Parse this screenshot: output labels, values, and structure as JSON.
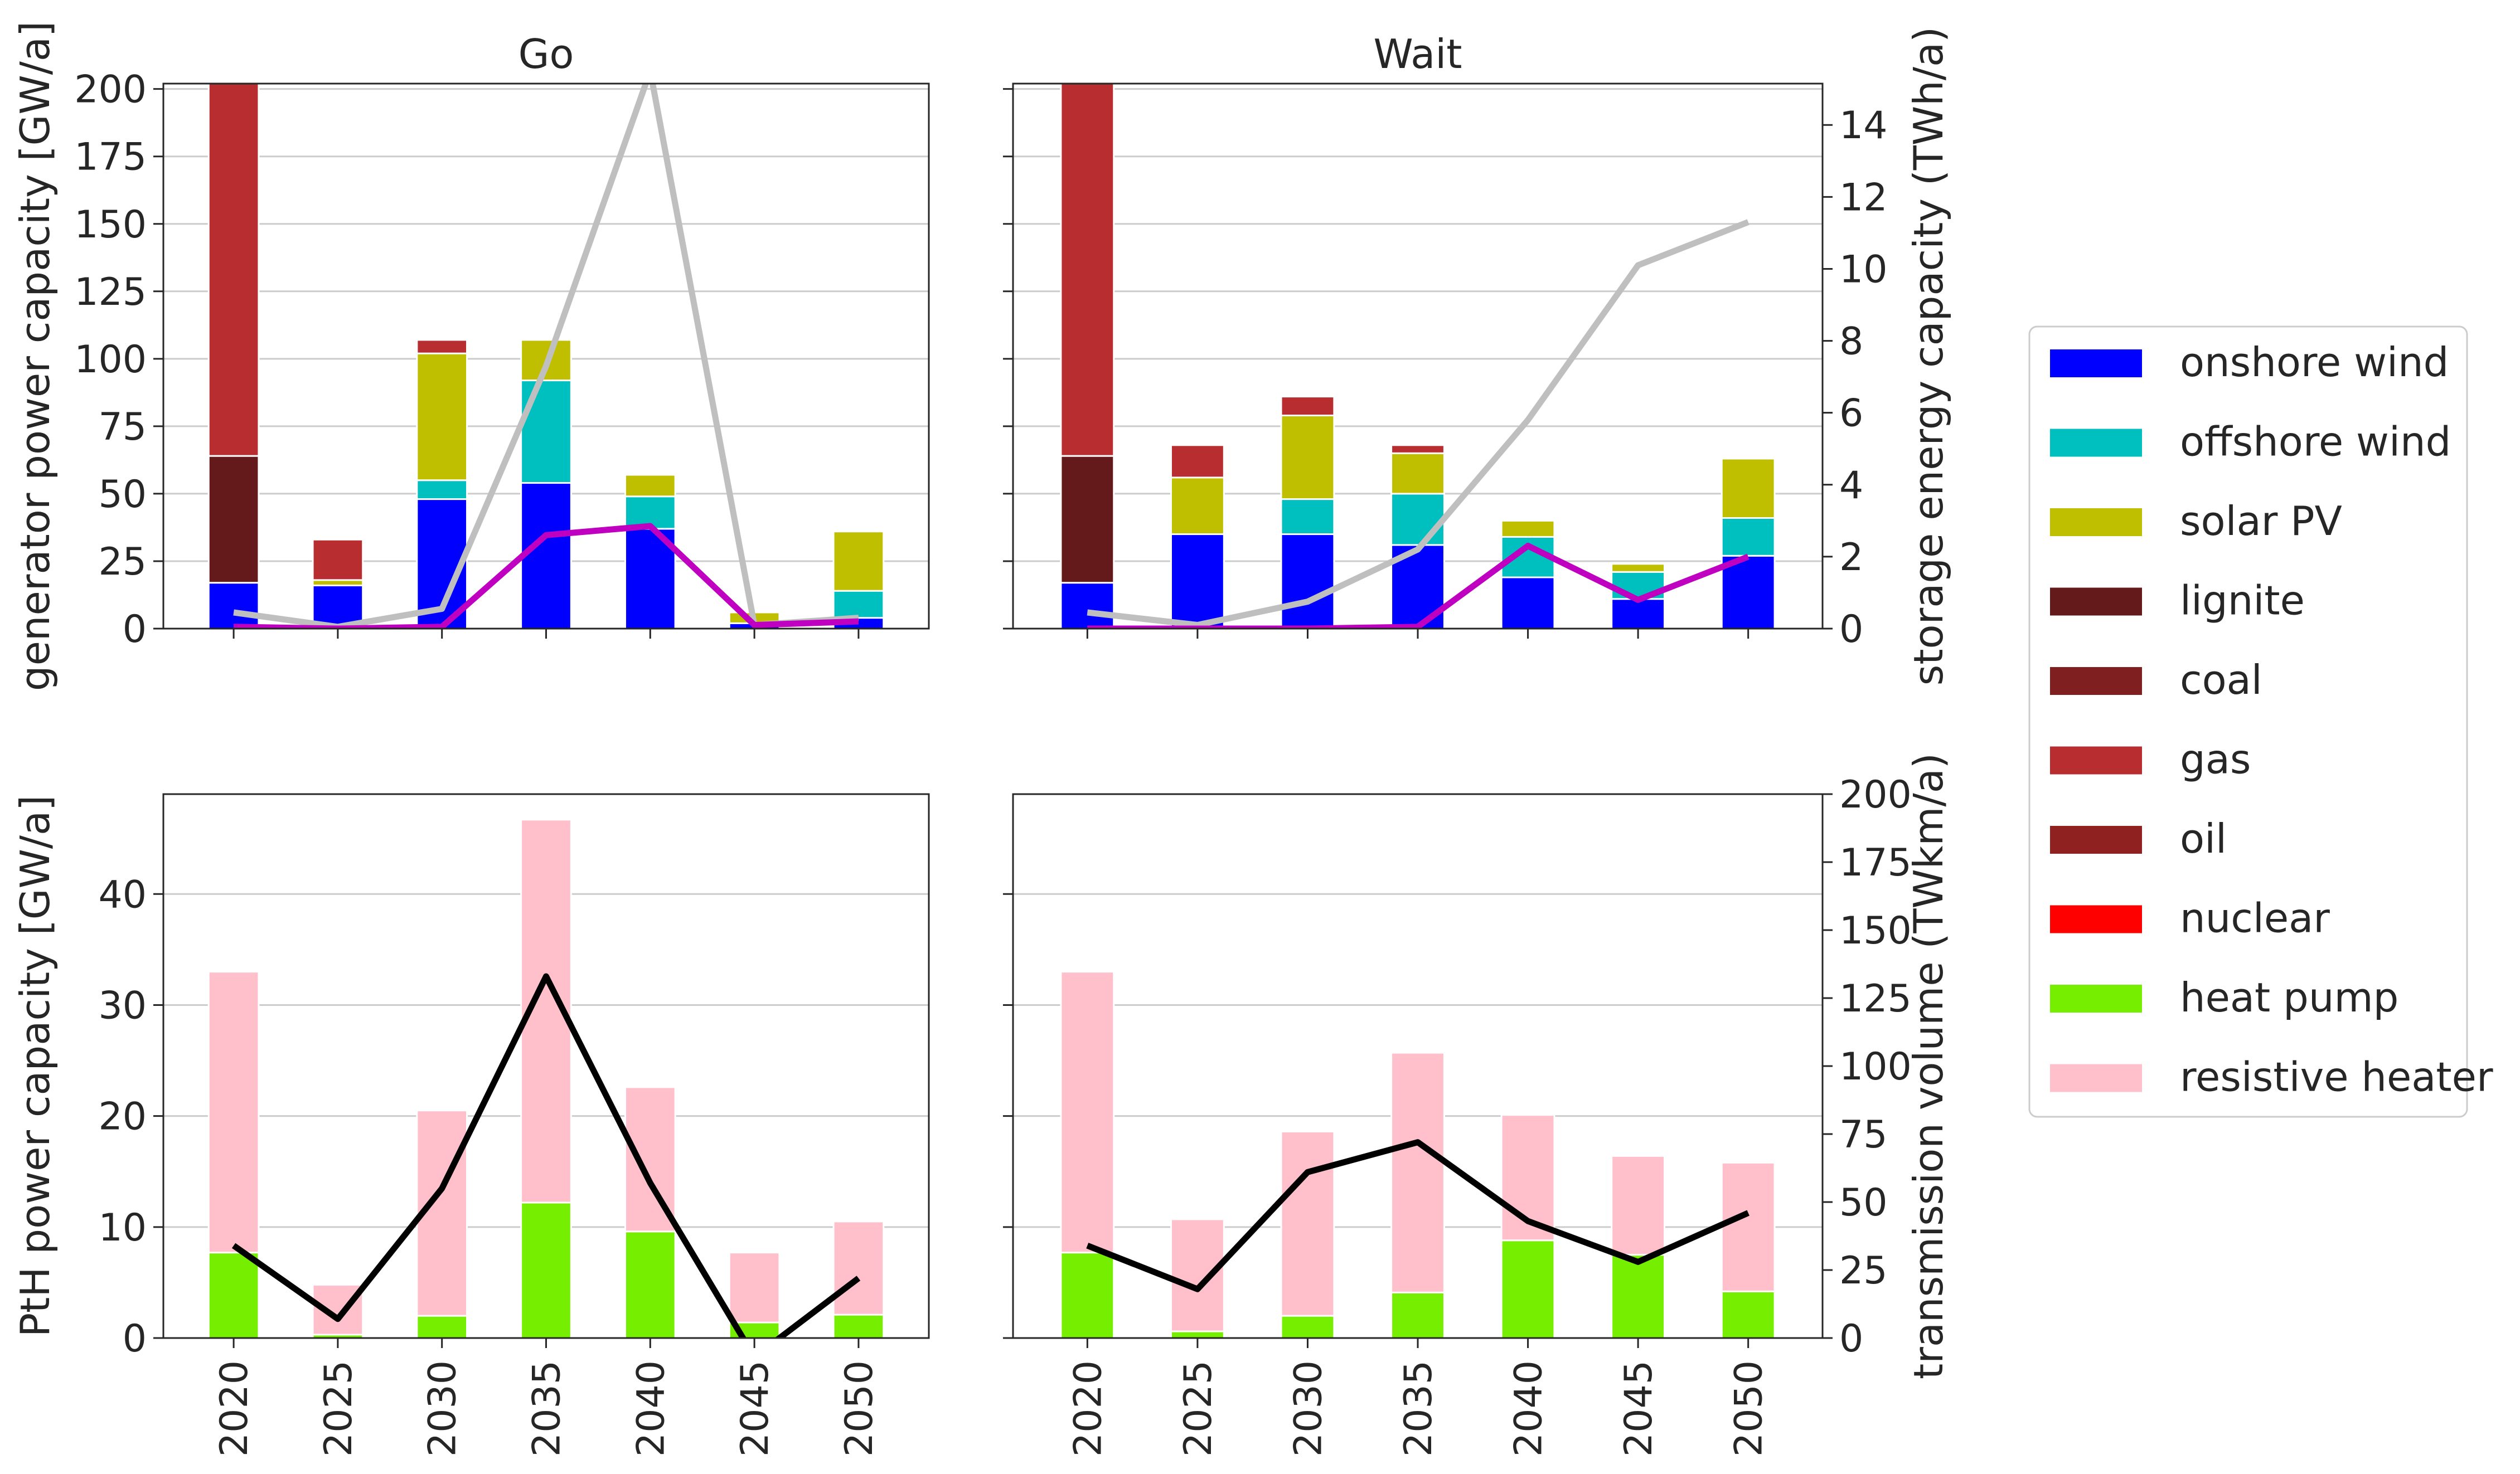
{
  "chart_data": [
    {
      "id": "go_top",
      "type": "bar",
      "stacked": true,
      "title": "Go",
      "xlabel": "",
      "ylabel": "generator power capacity [GW/a]",
      "ylim": [
        0,
        202
      ],
      "yticks": [
        0,
        25,
        50,
        75,
        100,
        125,
        150,
        175,
        200
      ],
      "categories": [
        "2020",
        "2025",
        "2030",
        "2035",
        "2040",
        "2045",
        "2050"
      ],
      "series": [
        {
          "name": "onshore wind",
          "values": [
            17,
            16,
            48,
            54,
            37,
            2,
            4
          ]
        },
        {
          "name": "offshore wind",
          "values": [
            0,
            0,
            7,
            38,
            12,
            0,
            10
          ]
        },
        {
          "name": "solar PV",
          "values": [
            0,
            2,
            47,
            15,
            8,
            4,
            22
          ]
        },
        {
          "name": "lignite",
          "values": [
            47,
            0,
            0,
            0,
            0,
            0,
            0
          ]
        },
        {
          "name": "coal",
          "values": [
            0,
            0,
            0,
            0,
            0,
            0,
            0
          ]
        },
        {
          "name": "gas",
          "values": [
            138,
            15,
            5,
            0,
            0,
            0,
            0
          ]
        },
        {
          "name": "oil",
          "values": [
            0,
            0,
            0,
            0,
            0,
            0,
            0
          ]
        },
        {
          "name": "nuclear",
          "values": [
            0,
            0,
            0,
            0,
            0,
            0,
            0
          ]
        }
      ],
      "secondary_lines": [
        {
          "color": "#bfbfbf",
          "values": [
            0.45,
            0.05,
            0.55,
            7.3,
            15.5,
            0.1,
            0.3
          ]
        },
        {
          "color": "#c000c0",
          "values": [
            0.05,
            0.0,
            0.05,
            2.6,
            2.85,
            0.1,
            0.2
          ]
        }
      ],
      "secondary_ylim": [
        0,
        15.15
      ],
      "secondary_ylabel": ""
    },
    {
      "id": "wait_top",
      "type": "bar",
      "stacked": true,
      "title": "Wait",
      "xlabel": "",
      "ylabel": "",
      "ylim": [
        0,
        202
      ],
      "categories": [
        "2020",
        "2025",
        "2030",
        "2035",
        "2040",
        "2045",
        "2050"
      ],
      "series": [
        {
          "name": "onshore wind",
          "values": [
            17,
            35,
            35,
            31,
            19,
            11,
            27
          ]
        },
        {
          "name": "offshore wind",
          "values": [
            0,
            0,
            13,
            19,
            15,
            10,
            14
          ]
        },
        {
          "name": "solar PV",
          "values": [
            0,
            21,
            31,
            15,
            6,
            3,
            22
          ]
        },
        {
          "name": "lignite",
          "values": [
            47,
            0,
            0,
            0,
            0,
            0,
            0
          ]
        },
        {
          "name": "coal",
          "values": [
            0,
            0,
            0,
            0,
            0,
            0,
            0
          ]
        },
        {
          "name": "gas",
          "values": [
            138,
            12,
            7,
            3,
            0,
            0,
            0
          ]
        },
        {
          "name": "oil",
          "values": [
            0,
            0,
            0,
            0,
            0,
            0,
            0
          ]
        },
        {
          "name": "nuclear",
          "values": [
            0,
            0,
            0,
            0,
            0,
            0,
            0
          ]
        }
      ],
      "secondary_lines": [
        {
          "color": "#bfbfbf",
          "values": [
            0.45,
            0.1,
            0.75,
            2.2,
            5.8,
            10.1,
            11.3
          ]
        },
        {
          "color": "#c000c0",
          "values": [
            0.0,
            0.0,
            0.0,
            0.05,
            2.3,
            0.8,
            2.0
          ]
        }
      ],
      "secondary_ylim": [
        0,
        15.15
      ],
      "secondary_ylabel": "storage energy capacity (TWh/a)",
      "secondary_yticks": [
        0,
        2,
        4,
        6,
        8,
        10,
        12,
        14
      ]
    },
    {
      "id": "go_bottom",
      "type": "bar",
      "stacked": true,
      "title": "",
      "xlabel": "",
      "ylabel": "PtH power capacity [GW/a]",
      "ylim": [
        0,
        49
      ],
      "yticks": [
        0,
        10,
        20,
        30,
        40
      ],
      "categories": [
        "2020",
        "2025",
        "2030",
        "2035",
        "2040",
        "2045",
        "2050"
      ],
      "series": [
        {
          "name": "heat pump",
          "values": [
            7.7,
            0.3,
            2.0,
            12.2,
            9.6,
            1.4,
            2.1
          ]
        },
        {
          "name": "resistive heater",
          "values": [
            25.3,
            4.5,
            18.5,
            34.5,
            13.0,
            6.3,
            8.4
          ]
        }
      ],
      "secondary_lines": [
        {
          "color": "#000000",
          "values": [
            34,
            7,
            55,
            133,
            57,
            -7,
            22
          ]
        }
      ],
      "secondary_ylim": [
        0,
        200
      ],
      "secondary_ylabel": ""
    },
    {
      "id": "wait_bottom",
      "type": "bar",
      "stacked": true,
      "title": "",
      "xlabel": "",
      "ylabel": "",
      "ylim": [
        0,
        49
      ],
      "categories": [
        "2020",
        "2025",
        "2030",
        "2035",
        "2040",
        "2045",
        "2050"
      ],
      "series": [
        {
          "name": "heat pump",
          "values": [
            7.7,
            0.6,
            2.0,
            4.1,
            8.8,
            7.5,
            4.2
          ]
        },
        {
          "name": "resistive heater",
          "values": [
            25.3,
            10.1,
            16.6,
            21.6,
            11.3,
            8.9,
            11.6
          ]
        }
      ],
      "secondary_lines": [
        {
          "color": "#000000",
          "values": [
            34,
            18,
            61,
            72,
            43,
            28,
            46
          ]
        }
      ],
      "secondary_ylim": [
        0,
        200
      ],
      "secondary_ylabel": "transmission volume (TWkm/a)",
      "secondary_yticks": [
        0,
        25,
        50,
        75,
        100,
        125,
        150,
        175,
        200
      ]
    }
  ],
  "legend": {
    "placement": "right",
    "entries": [
      {
        "name": "onshore wind",
        "color": "#0000ff"
      },
      {
        "name": "offshore wind",
        "color": "#00bfbf"
      },
      {
        "name": "solar PV",
        "color": "#bfbf00"
      },
      {
        "name": "lignite",
        "color": "#641a1a"
      },
      {
        "name": "coal",
        "color": "#7f1f1f"
      },
      {
        "name": "gas",
        "color": "#b82e30"
      },
      {
        "name": "oil",
        "color": "#8f2121"
      },
      {
        "name": "nuclear",
        "color": "#ff0000"
      },
      {
        "name": "heat pump",
        "color": "#76ee00"
      },
      {
        "name": "resistive heater",
        "color": "#ffc0cb"
      }
    ]
  },
  "colors": {
    "onshore wind": "#0000ff",
    "offshore wind": "#00bfbf",
    "solar PV": "#bfbf00",
    "lignite": "#641a1a",
    "coal": "#7f1f1f",
    "gas": "#b82e30",
    "oil": "#8f2121",
    "nuclear": "#ff0000",
    "heat pump": "#76ee00",
    "resistive heater": "#ffc0cb"
  },
  "grid": true
}
